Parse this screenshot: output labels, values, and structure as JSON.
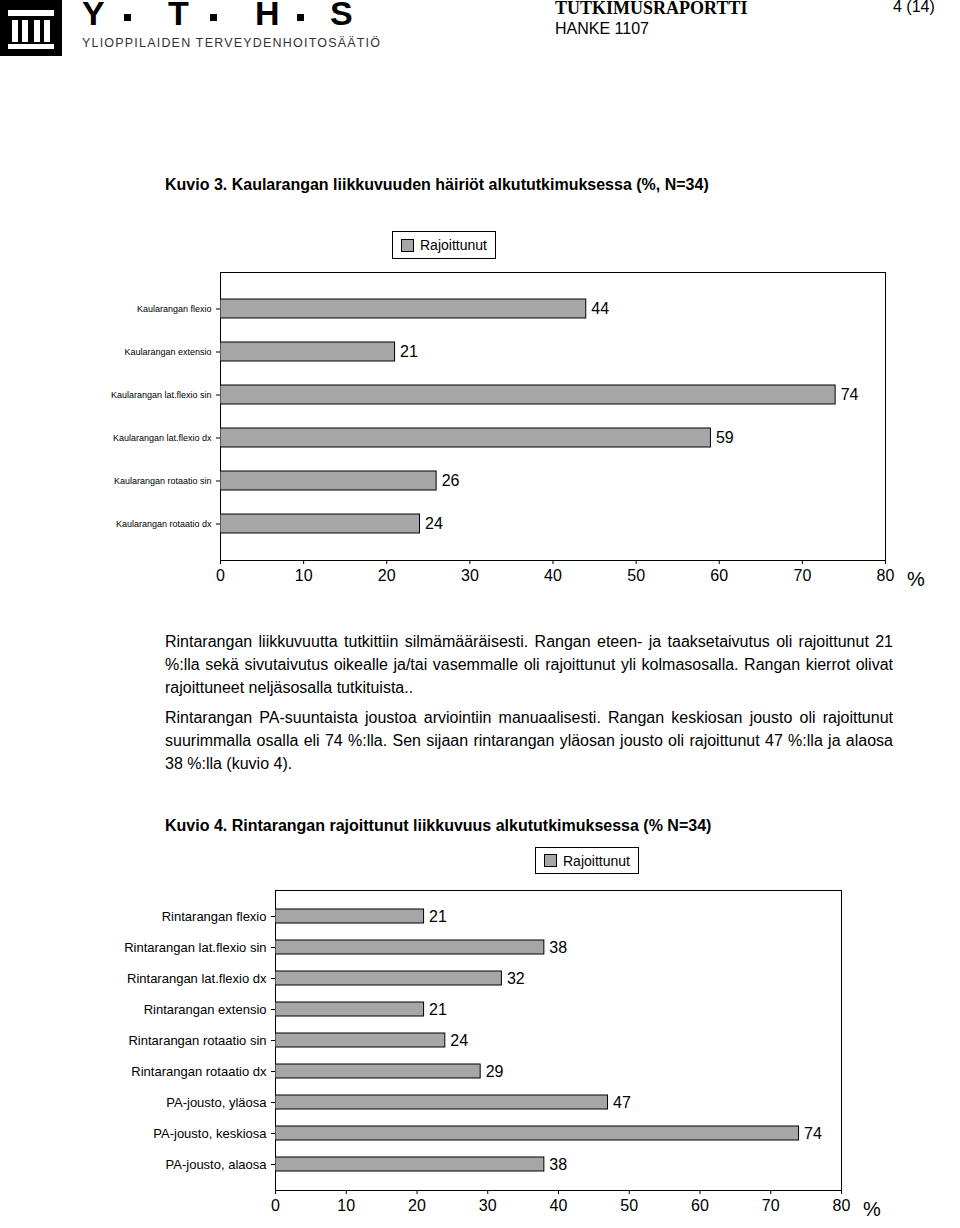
{
  "header": {
    "logo_letters": [
      "Y",
      "T",
      "H",
      "S"
    ],
    "logo_subtitle": "YLIOPPILAIDEN TERVEYDENHOITOSÄÄTIÖ",
    "report": "TUTKIMUSRAPORTTI",
    "project": "HANKE 1107",
    "page": "4 (14)"
  },
  "chart_data": [
    {
      "type": "bar",
      "orientation": "horizontal",
      "title": "Kuvio 3. Kaularangan liikkuvuuden häiriöt alkututkimuksessa (%, N=34)",
      "categories": [
        "Kaularangan flexio",
        "Kaularangan extensio",
        "Kaularangan lat.flexio sin",
        "Kaularangan lat.flexio dx",
        "Kaularangan rotaatio sin",
        "Kaularangan rotaatio dx"
      ],
      "series": [
        {
          "name": "Rajoittunut",
          "color": "#a6a6a6",
          "values": [
            44,
            21,
            74,
            59,
            26,
            24
          ]
        }
      ],
      "xlim": [
        0,
        80
      ],
      "xticks": [
        0,
        10,
        20,
        30,
        40,
        50,
        60,
        70,
        80
      ],
      "x_label": "%",
      "legend": "top",
      "data_labels": true,
      "grid": false
    },
    {
      "type": "bar",
      "orientation": "horizontal",
      "title": "Kuvio 4. Rintarangan rajoittunut liikkuvuus alkututkimuksessa (% N=34)",
      "categories": [
        "Rintarangan flexio",
        "Rintarangan lat.flexio sin",
        "Rintarangan lat.flexio dx",
        "Rintarangan extensio",
        "Rintarangan rotaatio sin",
        "Rintarangan rotaatio dx",
        "PA-jousto, yläosa",
        "PA-jousto, keskiosa",
        "PA-jousto, alaosa"
      ],
      "series": [
        {
          "name": "Rajoittunut",
          "color": "#a6a6a6",
          "values": [
            21,
            38,
            32,
            21,
            24,
            29,
            47,
            74,
            38
          ]
        }
      ],
      "xlim": [
        0,
        80
      ],
      "xticks": [
        0,
        10,
        20,
        30,
        40,
        50,
        60,
        70,
        80
      ],
      "x_label": "%",
      "legend": "top",
      "data_labels": true,
      "grid": false
    }
  ],
  "paragraphs": [
    "Rintarangan liikkuvuutta tutkittiin silmämääräisesti. Rangan eteen- ja taaksetaivutus oli rajoittunut 21 %:lla sekä sivutaivutus oikealle ja/tai vasemmalle oli rajoittunut yli kolmasosalla. Rangan kierrot olivat rajoittuneet neljäsosalla tutkituista..",
    "Rintarangan PA-suuntaista joustoa arviointiin manuaalisesti. Rangan keskiosan jousto oli rajoittunut suurimmalla osalla eli 74 %:lla. Sen sijaan rintarangan yläosan jousto oli rajoittunut 47 %:lla ja alaosa 38 %:lla (kuvio 4)."
  ]
}
